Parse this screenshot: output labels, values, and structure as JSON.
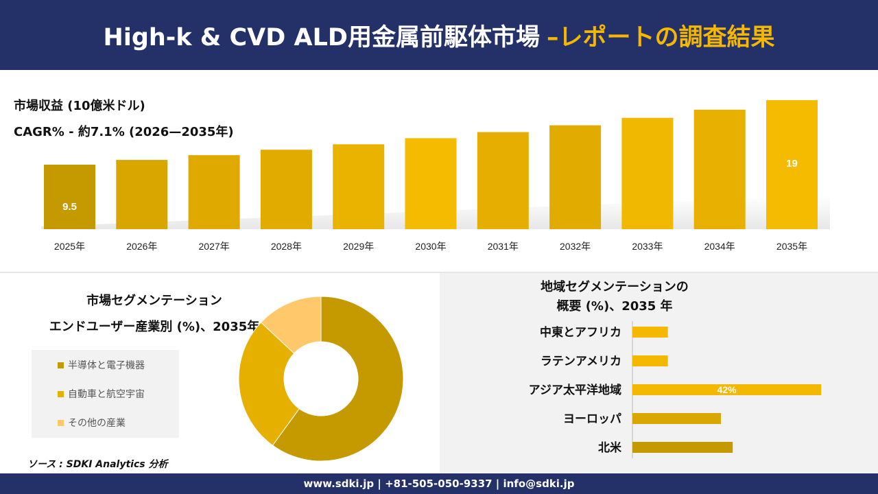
{
  "header": {
    "title_main": "High-k & CVD ALD用金属前駆体市場",
    "title_accent": "–レポートの調査結果"
  },
  "revenue": {
    "label": "市場収益 (10億米ドル)",
    "cagr": "CAGR% - 約7.1% (2026—2035年)"
  },
  "segment": {
    "title_line1": "市場セグメンテーション",
    "title_line2": "エンドユーザー産業別 (%)、2035年"
  },
  "region": {
    "title_line1": "地域セグメンテーションの",
    "title_line2": "概要 (%)、2035 年"
  },
  "source": "ソース : SDKI Analytics 分析",
  "footer": "www.sdki.jp | +81-505-050-9337 | info@sdki.jp",
  "colors": {
    "navy": "#243169",
    "gold": "#f5b800",
    "dark_gold": "#c49a00",
    "light_gold": "#ffc96b"
  },
  "chart_data": [
    {
      "type": "bar",
      "categories": [
        "2025年",
        "2026年",
        "2027年",
        "2028年",
        "2029年",
        "2030年",
        "2031年",
        "2032年",
        "2033年",
        "2034年",
        "2035年"
      ],
      "values": [
        9.5,
        10.2,
        10.9,
        11.7,
        12.5,
        13.4,
        14.3,
        15.3,
        16.4,
        17.6,
        19
      ],
      "data_labels": [
        "9.5",
        "",
        "",
        "",
        "",
        "",
        "",
        "",
        "",
        "",
        "19"
      ],
      "ylim": [
        0,
        20
      ],
      "grid": false
    },
    {
      "type": "pie",
      "labels": [
        "半導体と電子機器",
        "自動車と航空宇宙",
        "その他の産業"
      ],
      "values": [
        60,
        27,
        13
      ],
      "data_labels": [
        "60%",
        "",
        ""
      ],
      "colors": [
        "#c49a00",
        "#e6b000",
        "#ffc96b"
      ],
      "legend": "left"
    },
    {
      "type": "bar",
      "orientation": "horizontal",
      "categories": [
        "中東とアフリカ",
        "ラテンアメリカ",
        "アジア太平洋地域",
        "ヨーロッパ",
        "北米"
      ],
      "values": [
        6,
        6,
        32,
        15,
        17
      ],
      "data_labels": [
        "",
        "",
        "42%",
        "",
        ""
      ],
      "colors": [
        "#f5b800",
        "#f5b800",
        "#f5b800",
        "#d9a800",
        "#c49a00"
      ]
    }
  ]
}
